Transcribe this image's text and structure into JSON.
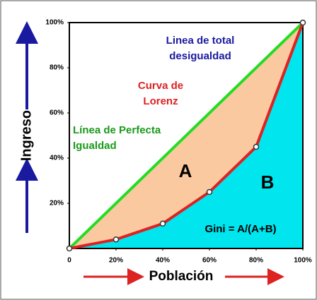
{
  "chart_data": {
    "type": "line",
    "y_label": "Ingreso",
    "x_label": "Población",
    "xlim": [
      0,
      100
    ],
    "ylim": [
      0,
      100
    ],
    "xticks": [
      0,
      {
        "value": 20,
        "label": "20%"
      },
      {
        "value": 40,
        "label": "40%"
      },
      {
        "value": 60,
        "label": "60%"
      },
      {
        "value": 80,
        "label": "80%"
      },
      {
        "value": 100,
        "label": "100%"
      }
    ],
    "yticks": [
      {
        "value": 20,
        "label": "20%"
      },
      {
        "value": 40,
        "label": "40%"
      },
      {
        "value": 60,
        "label": "60%"
      },
      {
        "value": 80,
        "label": "80%"
      },
      {
        "value": 100,
        "label": "100%"
      }
    ],
    "series": [
      {
        "x": [
          0,
          20,
          40,
          60,
          80,
          100
        ],
        "values": [
          0,
          4,
          11,
          25,
          45,
          100
        ],
        "color": "#dd2222"
      },
      {
        "x": [
          0,
          100
        ],
        "values": [
          0,
          100
        ],
        "color": "#22dd22"
      }
    ],
    "annotations": [
      {
        "lines": [
          "Linea de total",
          "desigualdad"
        ],
        "color": "#1a1aa0"
      },
      {
        "lines": [
          "Curva de",
          "Lorenz"
        ],
        "color": "#dd2222"
      },
      {
        "lines": [
          "Línea de Perfecta",
          "Igualdad"
        ],
        "color": "#1a9a1a"
      },
      {
        "lines": [
          "A"
        ],
        "color": "#000000"
      },
      {
        "lines": [
          "B"
        ],
        "color": "#000000"
      },
      {
        "lines": [
          "Gini = A/(A+B)"
        ],
        "color": "#000000"
      }
    ]
  }
}
